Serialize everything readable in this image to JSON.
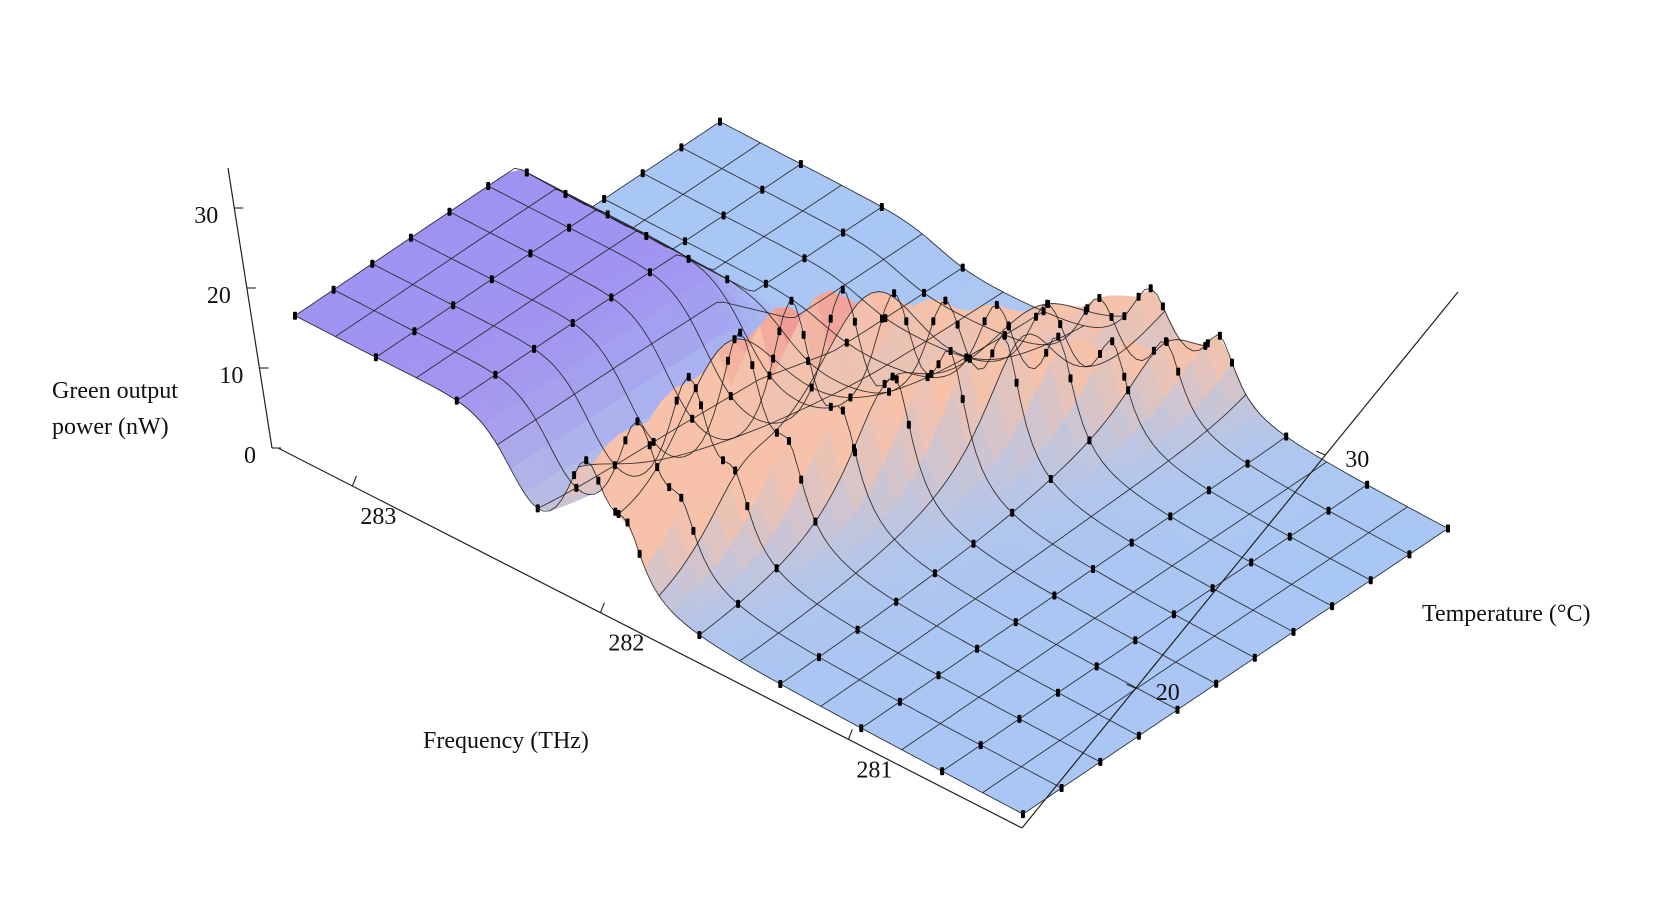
{
  "chart_data": {
    "type": "surface3d",
    "z_axis": {
      "label_lines": [
        "Green output",
        "power (nW)"
      ],
      "ticks": [
        "0",
        "10",
        "20",
        "30"
      ],
      "range": [
        0,
        35
      ]
    },
    "x_axis": {
      "label": "Frequency (THz)",
      "ticks": [
        "283",
        "282",
        "281"
      ],
      "range": [
        283.3,
        280.3
      ]
    },
    "y_axis": {
      "label": "Temperature (°C)",
      "ticks": [
        "20",
        "30"
      ],
      "range": [
        14,
        37
      ]
    },
    "surface": {
      "baseline_power": 2,
      "plateau": {
        "power": 16,
        "freq_from": 282.4,
        "freq_to": 283.3
      },
      "plateau_high_temp_power": 5,
      "ridges": [
        {
          "name": "ridge-1",
          "freq_at_20C": 281.95,
          "shift_per_degC": -0.025,
          "peak_power": 24
        },
        {
          "name": "ridge-2",
          "freq_at_20C": 281.75,
          "shift_per_degC": -0.03,
          "peak_power": 15
        }
      ]
    },
    "grid": true,
    "colors": {
      "low": "#a9cdf5",
      "mid": "#9d8cf2",
      "high": "#f7c2a9",
      "peak": "#e56f7f"
    }
  }
}
